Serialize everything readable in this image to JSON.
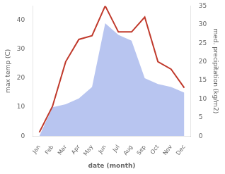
{
  "chart_data": {
    "type": "line",
    "xlabel": "date (month)",
    "ylabel": "max temp (C)",
    "y2label": "med. precipitation (kg/m2)",
    "categories": [
      "Jan",
      "Feb",
      "Mar",
      "Apr",
      "May",
      "Jun",
      "Jul",
      "Aug",
      "Sep",
      "Oct",
      "Nov",
      "Dec"
    ],
    "series": [
      {
        "type": "area",
        "color": "#b8c5f0",
        "axis": "y",
        "values": [
          0,
          10,
          11,
          13,
          17,
          39,
          35,
          33,
          20,
          18,
          17,
          15
        ]
      },
      {
        "type": "line",
        "color": "#c0392b",
        "axis": "y2",
        "values": [
          1,
          8,
          20,
          26,
          27,
          35,
          28,
          28,
          32,
          20,
          18,
          13
        ]
      }
    ],
    "ylim": [
      0,
      45
    ],
    "yticks": [
      0,
      10,
      20,
      30,
      40
    ],
    "y2lim": [
      0,
      35
    ],
    "y2ticks": [
      0,
      5,
      10,
      15,
      20,
      25,
      30,
      35
    ],
    "grid": false
  }
}
